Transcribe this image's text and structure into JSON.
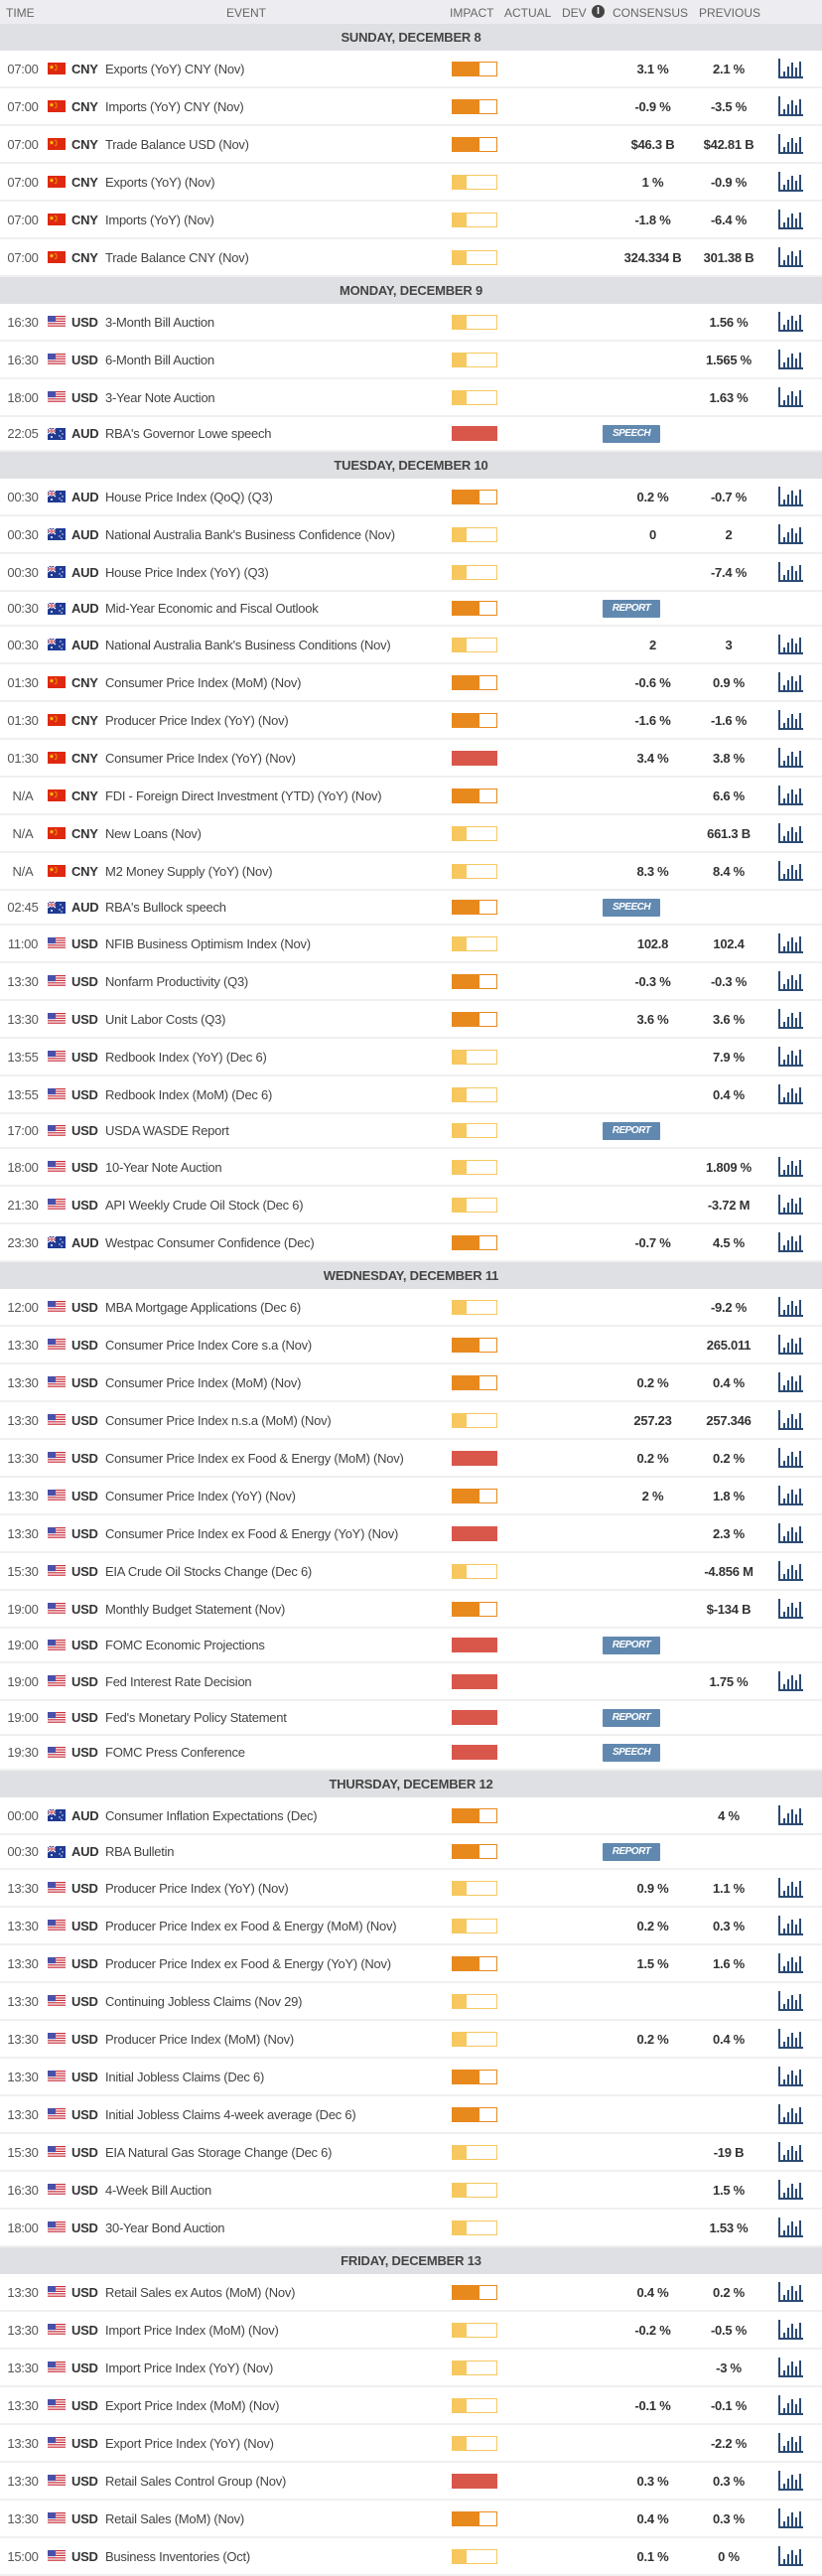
{
  "columns": {
    "time": "TIME",
    "event": "EVENT",
    "impact": "IMPACT",
    "actual": "ACTUAL",
    "dev": "DEV",
    "consensus": "CONSENSUS",
    "previous": "PREVIOUS",
    "info_icon": "i"
  },
  "colors": {
    "low": "#f6c85f",
    "medium": "#e8891e",
    "high": "#d9574a",
    "badge": "#6189b0",
    "chart_icon": "#2b4a73"
  },
  "days": [
    {
      "label": "SUNDAY, DECEMBER 8",
      "events": [
        {
          "time": "07:00",
          "flag": "cn",
          "currency": "CNY",
          "event": "Exports (YoY) CNY (Nov)",
          "impact": "medium",
          "actual": "",
          "consensus": "3.1 %",
          "previous": "2.1 %",
          "chart": true
        },
        {
          "time": "07:00",
          "flag": "cn",
          "currency": "CNY",
          "event": "Imports (YoY) CNY (Nov)",
          "impact": "medium",
          "actual": "",
          "consensus": "-0.9 %",
          "previous": "-3.5 %",
          "chart": true
        },
        {
          "time": "07:00",
          "flag": "cn",
          "currency": "CNY",
          "event": "Trade Balance USD (Nov)",
          "impact": "medium",
          "actual": "",
          "consensus": "$46.3 B",
          "previous": "$42.81 B",
          "chart": true
        },
        {
          "time": "07:00",
          "flag": "cn",
          "currency": "CNY",
          "event": "Exports (YoY) (Nov)",
          "impact": "low",
          "actual": "",
          "consensus": "1 %",
          "previous": "-0.9 %",
          "chart": true
        },
        {
          "time": "07:00",
          "flag": "cn",
          "currency": "CNY",
          "event": "Imports (YoY) (Nov)",
          "impact": "low",
          "actual": "",
          "consensus": "-1.8 %",
          "previous": "-6.4 %",
          "chart": true
        },
        {
          "time": "07:00",
          "flag": "cn",
          "currency": "CNY",
          "event": "Trade Balance CNY (Nov)",
          "impact": "low",
          "actual": "",
          "consensus": "324.334 B",
          "previous": "301.38 B",
          "chart": true
        }
      ]
    },
    {
      "label": "MONDAY, DECEMBER 9",
      "events": [
        {
          "time": "16:30",
          "flag": "us",
          "currency": "USD",
          "event": "3-Month Bill Auction",
          "impact": "low",
          "actual": "",
          "consensus": "",
          "previous": "1.56 %",
          "chart": true
        },
        {
          "time": "16:30",
          "flag": "us",
          "currency": "USD",
          "event": "6-Month Bill Auction",
          "impact": "low",
          "actual": "",
          "consensus": "",
          "previous": "1.565 %",
          "chart": true
        },
        {
          "time": "18:00",
          "flag": "us",
          "currency": "USD",
          "event": "3-Year Note Auction",
          "impact": "low",
          "actual": "",
          "consensus": "",
          "previous": "1.63 %",
          "chart": true
        },
        {
          "time": "22:05",
          "flag": "au",
          "currency": "AUD",
          "event": "RBA's Governor Lowe speech",
          "impact": "high",
          "actual": "",
          "consensus": "",
          "previous": "",
          "badge": "SPEECH",
          "chart": false
        }
      ]
    },
    {
      "label": "TUESDAY, DECEMBER 10",
      "events": [
        {
          "time": "00:30",
          "flag": "au",
          "currency": "AUD",
          "event": "House Price Index (QoQ) (Q3)",
          "impact": "medium",
          "actual": "",
          "consensus": "0.2 %",
          "previous": "-0.7 %",
          "chart": true
        },
        {
          "time": "00:30",
          "flag": "au",
          "currency": "AUD",
          "event": "National Australia Bank's Business Confidence (Nov)",
          "impact": "low",
          "actual": "",
          "consensus": "0",
          "previous": "2",
          "chart": true
        },
        {
          "time": "00:30",
          "flag": "au",
          "currency": "AUD",
          "event": "House Price Index (YoY) (Q3)",
          "impact": "low",
          "actual": "",
          "consensus": "",
          "previous": "-7.4 %",
          "chart": true
        },
        {
          "time": "00:30",
          "flag": "au",
          "currency": "AUD",
          "event": "Mid-Year Economic and Fiscal Outlook",
          "impact": "medium",
          "actual": "",
          "consensus": "",
          "previous": "",
          "badge": "REPORT",
          "chart": false
        },
        {
          "time": "00:30",
          "flag": "au",
          "currency": "AUD",
          "event": "National Australia Bank's Business Conditions (Nov)",
          "impact": "low",
          "actual": "",
          "consensus": "2",
          "previous": "3",
          "chart": true
        },
        {
          "time": "01:30",
          "flag": "cn",
          "currency": "CNY",
          "event": "Consumer Price Index (MoM) (Nov)",
          "impact": "medium",
          "actual": "",
          "consensus": "-0.6 %",
          "previous": "0.9 %",
          "chart": true
        },
        {
          "time": "01:30",
          "flag": "cn",
          "currency": "CNY",
          "event": "Producer Price Index (YoY) (Nov)",
          "impact": "medium",
          "actual": "",
          "consensus": "-1.6 %",
          "previous": "-1.6 %",
          "chart": true
        },
        {
          "time": "01:30",
          "flag": "cn",
          "currency": "CNY",
          "event": "Consumer Price Index (YoY) (Nov)",
          "impact": "high",
          "actual": "",
          "consensus": "3.4 %",
          "previous": "3.8 %",
          "chart": true
        },
        {
          "time": "N/A",
          "flag": "cn",
          "currency": "CNY",
          "event": "FDI - Foreign Direct Investment (YTD) (YoY) (Nov)",
          "impact": "medium",
          "actual": "",
          "consensus": "",
          "previous": "6.6 %",
          "chart": true
        },
        {
          "time": "N/A",
          "flag": "cn",
          "currency": "CNY",
          "event": "New Loans (Nov)",
          "impact": "low",
          "actual": "",
          "consensus": "",
          "previous": "661.3 B",
          "chart": true
        },
        {
          "time": "N/A",
          "flag": "cn",
          "currency": "CNY",
          "event": "M2 Money Supply (YoY) (Nov)",
          "impact": "low",
          "actual": "",
          "consensus": "8.3 %",
          "previous": "8.4 %",
          "chart": true
        },
        {
          "time": "02:45",
          "flag": "au",
          "currency": "AUD",
          "event": "RBA's Bullock speech",
          "impact": "medium",
          "actual": "",
          "consensus": "",
          "previous": "",
          "badge": "SPEECH",
          "chart": false
        },
        {
          "time": "11:00",
          "flag": "us",
          "currency": "USD",
          "event": "NFIB Business Optimism Index (Nov)",
          "impact": "low",
          "actual": "",
          "consensus": "102.8",
          "previous": "102.4",
          "chart": true
        },
        {
          "time": "13:30",
          "flag": "us",
          "currency": "USD",
          "event": "Nonfarm Productivity (Q3)",
          "impact": "medium",
          "actual": "",
          "consensus": "-0.3 %",
          "previous": "-0.3 %",
          "chart": true
        },
        {
          "time": "13:30",
          "flag": "us",
          "currency": "USD",
          "event": "Unit Labor Costs (Q3)",
          "impact": "medium",
          "actual": "",
          "consensus": "3.6 %",
          "previous": "3.6 %",
          "chart": true
        },
        {
          "time": "13:55",
          "flag": "us",
          "currency": "USD",
          "event": "Redbook Index (YoY) (Dec 6)",
          "impact": "low",
          "actual": "",
          "consensus": "",
          "previous": "7.9 %",
          "chart": true
        },
        {
          "time": "13:55",
          "flag": "us",
          "currency": "USD",
          "event": "Redbook Index (MoM) (Dec 6)",
          "impact": "low",
          "actual": "",
          "consensus": "",
          "previous": "0.4 %",
          "chart": true
        },
        {
          "time": "17:00",
          "flag": "us",
          "currency": "USD",
          "event": "USDA WASDE Report",
          "impact": "low",
          "actual": "",
          "consensus": "",
          "previous": "",
          "badge": "REPORT",
          "chart": false
        },
        {
          "time": "18:00",
          "flag": "us",
          "currency": "USD",
          "event": "10-Year Note Auction",
          "impact": "low",
          "actual": "",
          "consensus": "",
          "previous": "1.809 %",
          "chart": true
        },
        {
          "time": "21:30",
          "flag": "us",
          "currency": "USD",
          "event": "API Weekly Crude Oil Stock (Dec 6)",
          "impact": "low",
          "actual": "",
          "consensus": "",
          "previous": "-3.72 M",
          "chart": true
        },
        {
          "time": "23:30",
          "flag": "au",
          "currency": "AUD",
          "event": "Westpac Consumer Confidence (Dec)",
          "impact": "medium",
          "actual": "",
          "consensus": "-0.7 %",
          "previous": "4.5 %",
          "chart": true
        }
      ]
    },
    {
      "label": "WEDNESDAY, DECEMBER 11",
      "events": [
        {
          "time": "12:00",
          "flag": "us",
          "currency": "USD",
          "event": "MBA Mortgage Applications (Dec 6)",
          "impact": "low",
          "actual": "",
          "consensus": "",
          "previous": "-9.2 %",
          "chart": true
        },
        {
          "time": "13:30",
          "flag": "us",
          "currency": "USD",
          "event": "Consumer Price Index Core s.a (Nov)",
          "impact": "medium",
          "actual": "",
          "consensus": "",
          "previous": "265.011",
          "chart": true
        },
        {
          "time": "13:30",
          "flag": "us",
          "currency": "USD",
          "event": "Consumer Price Index (MoM) (Nov)",
          "impact": "medium",
          "actual": "",
          "consensus": "0.2 %",
          "previous": "0.4 %",
          "chart": true
        },
        {
          "time": "13:30",
          "flag": "us",
          "currency": "USD",
          "event": "Consumer Price Index n.s.a (MoM) (Nov)",
          "impact": "low",
          "actual": "",
          "consensus": "257.23",
          "previous": "257.346",
          "chart": true
        },
        {
          "time": "13:30",
          "flag": "us",
          "currency": "USD",
          "event": "Consumer Price Index ex Food & Energy (MoM) (Nov)",
          "impact": "high",
          "actual": "",
          "consensus": "0.2 %",
          "previous": "0.2 %",
          "chart": true
        },
        {
          "time": "13:30",
          "flag": "us",
          "currency": "USD",
          "event": "Consumer Price Index (YoY) (Nov)",
          "impact": "medium",
          "actual": "",
          "consensus": "2 %",
          "previous": "1.8 %",
          "chart": true
        },
        {
          "time": "13:30",
          "flag": "us",
          "currency": "USD",
          "event": "Consumer Price Index ex Food & Energy (YoY) (Nov)",
          "impact": "high",
          "actual": "",
          "consensus": "",
          "previous": "2.3 %",
          "chart": true
        },
        {
          "time": "15:30",
          "flag": "us",
          "currency": "USD",
          "event": "EIA Crude Oil Stocks Change (Dec 6)",
          "impact": "low",
          "actual": "",
          "consensus": "",
          "previous": "-4.856 M",
          "chart": true
        },
        {
          "time": "19:00",
          "flag": "us",
          "currency": "USD",
          "event": "Monthly Budget Statement (Nov)",
          "impact": "medium",
          "actual": "",
          "consensus": "",
          "previous": "$-134 B",
          "chart": true
        },
        {
          "time": "19:00",
          "flag": "us",
          "currency": "USD",
          "event": "FOMC Economic Projections",
          "impact": "high",
          "actual": "",
          "consensus": "",
          "previous": "",
          "badge": "REPORT",
          "chart": false
        },
        {
          "time": "19:00",
          "flag": "us",
          "currency": "USD",
          "event": "Fed Interest Rate Decision",
          "impact": "high",
          "actual": "",
          "consensus": "",
          "previous": "1.75 %",
          "chart": true
        },
        {
          "time": "19:00",
          "flag": "us",
          "currency": "USD",
          "event": "Fed's Monetary Policy Statement",
          "impact": "high",
          "actual": "",
          "consensus": "",
          "previous": "",
          "badge": "REPORT",
          "chart": false
        },
        {
          "time": "19:30",
          "flag": "us",
          "currency": "USD",
          "event": "FOMC Press Conference",
          "impact": "high",
          "actual": "",
          "consensus": "",
          "previous": "",
          "badge": "SPEECH",
          "chart": false
        }
      ]
    },
    {
      "label": "THURSDAY, DECEMBER 12",
      "events": [
        {
          "time": "00:00",
          "flag": "au",
          "currency": "AUD",
          "event": "Consumer Inflation Expectations (Dec)",
          "impact": "medium",
          "actual": "",
          "consensus": "",
          "previous": "4 %",
          "chart": true
        },
        {
          "time": "00:30",
          "flag": "au",
          "currency": "AUD",
          "event": "RBA Bulletin",
          "impact": "medium",
          "actual": "",
          "consensus": "",
          "previous": "",
          "badge": "REPORT",
          "chart": false
        },
        {
          "time": "13:30",
          "flag": "us",
          "currency": "USD",
          "event": "Producer Price Index (YoY) (Nov)",
          "impact": "low",
          "actual": "",
          "consensus": "0.9 %",
          "previous": "1.1 %",
          "chart": true
        },
        {
          "time": "13:30",
          "flag": "us",
          "currency": "USD",
          "event": "Producer Price Index ex Food & Energy (MoM) (Nov)",
          "impact": "low",
          "actual": "",
          "consensus": "0.2 %",
          "previous": "0.3 %",
          "chart": true
        },
        {
          "time": "13:30",
          "flag": "us",
          "currency": "USD",
          "event": "Producer Price Index ex Food & Energy (YoY) (Nov)",
          "impact": "medium",
          "actual": "",
          "consensus": "1.5 %",
          "previous": "1.6 %",
          "chart": true
        },
        {
          "time": "13:30",
          "flag": "us",
          "currency": "USD",
          "event": "Continuing Jobless Claims (Nov 29)",
          "impact": "low",
          "actual": "",
          "consensus": "",
          "previous": "",
          "chart": true
        },
        {
          "time": "13:30",
          "flag": "us",
          "currency": "USD",
          "event": "Producer Price Index (MoM) (Nov)",
          "impact": "low",
          "actual": "",
          "consensus": "0.2 %",
          "previous": "0.4 %",
          "chart": true
        },
        {
          "time": "13:30",
          "flag": "us",
          "currency": "USD",
          "event": "Initial Jobless Claims (Dec 6)",
          "impact": "medium",
          "actual": "",
          "consensus": "",
          "previous": "",
          "chart": true
        },
        {
          "time": "13:30",
          "flag": "us",
          "currency": "USD",
          "event": "Initial Jobless Claims 4-week average (Dec 6)",
          "impact": "medium",
          "actual": "",
          "consensus": "",
          "previous": "",
          "chart": true
        },
        {
          "time": "15:30",
          "flag": "us",
          "currency": "USD",
          "event": "EIA Natural Gas Storage Change (Dec 6)",
          "impact": "low",
          "actual": "",
          "consensus": "",
          "previous": "-19 B",
          "chart": true
        },
        {
          "time": "16:30",
          "flag": "us",
          "currency": "USD",
          "event": "4-Week Bill Auction",
          "impact": "low",
          "actual": "",
          "consensus": "",
          "previous": "1.5 %",
          "chart": true
        },
        {
          "time": "18:00",
          "flag": "us",
          "currency": "USD",
          "event": "30-Year Bond Auction",
          "impact": "low",
          "actual": "",
          "consensus": "",
          "previous": "1.53 %",
          "chart": true
        }
      ]
    },
    {
      "label": "FRIDAY, DECEMBER 13",
      "events": [
        {
          "time": "13:30",
          "flag": "us",
          "currency": "USD",
          "event": "Retail Sales ex Autos (MoM) (Nov)",
          "impact": "medium",
          "actual": "",
          "consensus": "0.4 %",
          "previous": "0.2 %",
          "chart": true
        },
        {
          "time": "13:30",
          "flag": "us",
          "currency": "USD",
          "event": "Import Price Index (MoM) (Nov)",
          "impact": "low",
          "actual": "",
          "consensus": "-0.2 %",
          "previous": "-0.5 %",
          "chart": true
        },
        {
          "time": "13:30",
          "flag": "us",
          "currency": "USD",
          "event": "Import Price Index (YoY) (Nov)",
          "impact": "low",
          "actual": "",
          "consensus": "",
          "previous": "-3 %",
          "chart": true
        },
        {
          "time": "13:30",
          "flag": "us",
          "currency": "USD",
          "event": "Export Price Index (MoM) (Nov)",
          "impact": "low",
          "actual": "",
          "consensus": "-0.1 %",
          "previous": "-0.1 %",
          "chart": true
        },
        {
          "time": "13:30",
          "flag": "us",
          "currency": "USD",
          "event": "Export Price Index (YoY) (Nov)",
          "impact": "low",
          "actual": "",
          "consensus": "",
          "previous": "-2.2 %",
          "chart": true
        },
        {
          "time": "13:30",
          "flag": "us",
          "currency": "USD",
          "event": "Retail Sales Control Group (Nov)",
          "impact": "high",
          "actual": "",
          "consensus": "0.3 %",
          "previous": "0.3 %",
          "chart": true
        },
        {
          "time": "13:30",
          "flag": "us",
          "currency": "USD",
          "event": "Retail Sales (MoM) (Nov)",
          "impact": "medium",
          "actual": "",
          "consensus": "0.4 %",
          "previous": "0.3 %",
          "chart": true
        },
        {
          "time": "15:00",
          "flag": "us",
          "currency": "USD",
          "event": "Business Inventories (Oct)",
          "impact": "low",
          "actual": "",
          "consensus": "0.1 %",
          "previous": "0 %",
          "chart": true
        }
      ]
    }
  ]
}
